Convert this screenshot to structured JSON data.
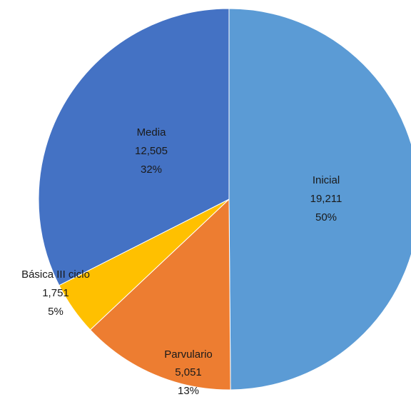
{
  "chart_data": {
    "type": "pie",
    "title": "",
    "start_angle_deg": 0,
    "direction": "clockwise",
    "slices": [
      {
        "label": "Inicial",
        "value_text": "19,211",
        "value": 19211,
        "percent_text": "50%",
        "color": "#5B9BD5"
      },
      {
        "label": "Parvulario",
        "value_text": "5,051",
        "value": 5051,
        "percent_text": "13%",
        "color": "#ED7D31"
      },
      {
        "label": "Básica III ciclo",
        "value_text": "1,751",
        "value": 1751,
        "percent_text": "5%",
        "color": "#FFC000"
      },
      {
        "label": "Media",
        "value_text": "12,505",
        "value": 12505,
        "percent_text": "32%",
        "color": "#4472C4"
      }
    ]
  }
}
